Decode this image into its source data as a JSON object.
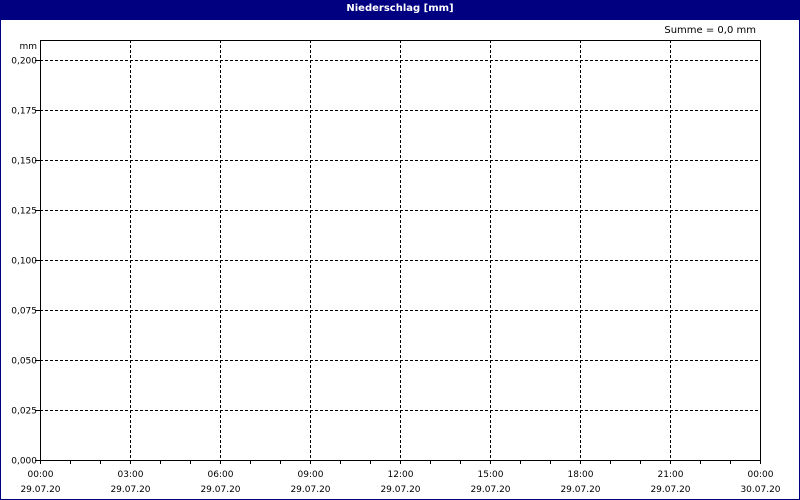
{
  "window": {
    "title": "Niederschlag [mm]"
  },
  "summary": "Summe = 0,0 mm",
  "colors": {
    "titlebar": "#000080",
    "grid": "#000000",
    "background": "#ffffff"
  },
  "chart_data": {
    "type": "bar",
    "title": "Niederschlag [mm]",
    "ylabel": "mm",
    "xlabel": "",
    "ylim": [
      0,
      0.2
    ],
    "yticks": [
      0,
      0.025,
      0.05,
      0.075,
      0.1,
      0.125,
      0.15,
      0.175,
      0.2
    ],
    "ytick_labels": [
      "0,000",
      "0,025",
      "0,050",
      "0,075",
      "0,100",
      "0,125",
      "0,150",
      "0,175",
      "0,200"
    ],
    "xlim": [
      "29.07.20 00:00",
      "30.07.20 00:00"
    ],
    "xtick_labels": [
      {
        "time": "00:00",
        "date": "29.07.20"
      },
      {
        "time": "03:00",
        "date": "29.07.20"
      },
      {
        "time": "06:00",
        "date": "29.07.20"
      },
      {
        "time": "09:00",
        "date": "29.07.20"
      },
      {
        "time": "12:00",
        "date": "29.07.20"
      },
      {
        "time": "15:00",
        "date": "29.07.20"
      },
      {
        "time": "18:00",
        "date": "29.07.20"
      },
      {
        "time": "21:00",
        "date": "29.07.20"
      },
      {
        "time": "00:00",
        "date": "30.07.20"
      }
    ],
    "minor_tick_interval_hours": 1,
    "grid": true,
    "values": []
  }
}
